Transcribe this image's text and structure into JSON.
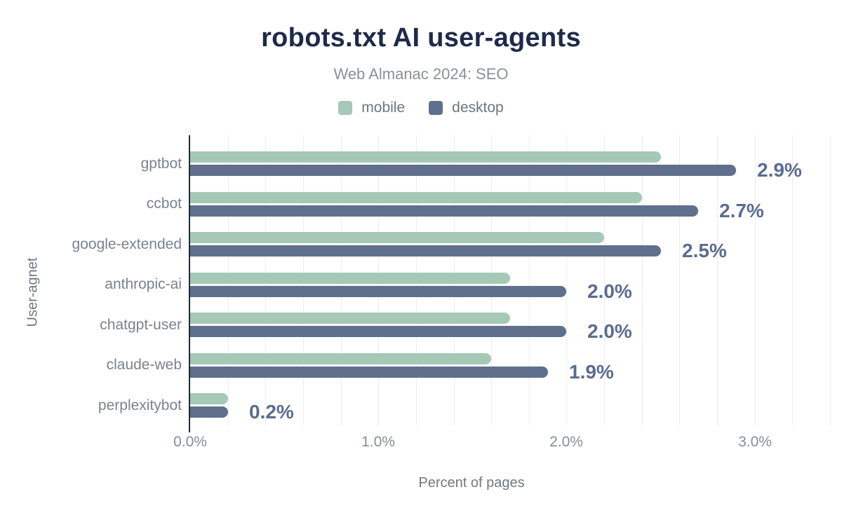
{
  "chart_data": {
    "type": "bar",
    "orientation": "horizontal",
    "title": "robots.txt AI user-agents",
    "subtitle": "Web Almanac 2024: SEO",
    "xlabel": "Percent of pages",
    "ylabel": "User-agnet",
    "categories": [
      "gptbot",
      "ccbot",
      "google-extended",
      "anthropic-ai",
      "chatgpt-user",
      "claude-web",
      "perplexitybot"
    ],
    "series": [
      {
        "name": "mobile",
        "color": "#a5c8b7",
        "values": [
          2.5,
          2.4,
          2.2,
          1.7,
          1.7,
          1.6,
          0.2
        ]
      },
      {
        "name": "desktop",
        "color": "#5f6f8c",
        "values": [
          2.9,
          2.7,
          2.5,
          2.0,
          2.0,
          1.9,
          0.2
        ]
      }
    ],
    "data_labels": [
      "2.9%",
      "2.7%",
      "2.5%",
      "2.0%",
      "2.0%",
      "1.9%",
      "0.2%"
    ],
    "x_ticks": [
      "0.0%",
      "1.0%",
      "2.0%",
      "3.0%"
    ],
    "x_tick_values": [
      0,
      1,
      2,
      3
    ],
    "xlim": [
      0,
      3.4
    ],
    "grid": {
      "axis": "x",
      "interval": 0.2,
      "color": "#ededee"
    },
    "legend": {
      "position": "top",
      "labels": [
        "mobile",
        "desktop"
      ]
    },
    "colors": {
      "title": "#1e2a4a",
      "subtitle": "#8a9097",
      "axis_line": "#1a2b49",
      "value_label": "#5b6c90",
      "category_label": "#7b828c",
      "tick_label": "#868d97",
      "axis_title": "#717881",
      "legend_label": "#6d747f"
    }
  }
}
